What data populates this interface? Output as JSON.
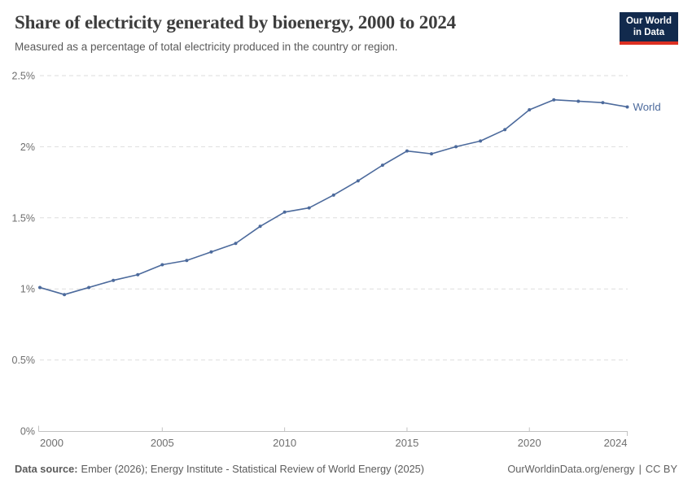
{
  "header": {
    "title": "Share of electricity generated by bioenergy, 2000 to 2024",
    "subtitle": "Measured as a percentage of total electricity produced in the country or region.",
    "logo": {
      "line1": "Our World",
      "line2": "in Data"
    }
  },
  "chart_data": {
    "type": "line",
    "title": "Share of electricity generated by bioenergy, 2000 to 2024",
    "xlabel": "",
    "ylabel": "",
    "unit": "%",
    "xlim": [
      2000,
      2024
    ],
    "ylim": [
      0,
      2.5
    ],
    "grid": "horizontal-dashed",
    "legend_position": "end-of-line-label",
    "x": [
      2000,
      2001,
      2002,
      2003,
      2004,
      2005,
      2006,
      2007,
      2008,
      2009,
      2010,
      2011,
      2012,
      2013,
      2014,
      2015,
      2016,
      2017,
      2018,
      2019,
      2020,
      2021,
      2022,
      2023,
      2024
    ],
    "series": [
      {
        "name": "World",
        "color": "#4c6a9c",
        "values": [
          1.01,
          0.96,
          1.01,
          1.06,
          1.1,
          1.17,
          1.2,
          1.26,
          1.32,
          1.44,
          1.54,
          1.57,
          1.66,
          1.76,
          1.87,
          1.97,
          1.95,
          2.0,
          2.04,
          2.12,
          2.26,
          2.33,
          2.32,
          2.31,
          2.28
        ]
      }
    ],
    "y_ticks": [
      {
        "value": 0,
        "label": "0%"
      },
      {
        "value": 0.5,
        "label": "0.5%"
      },
      {
        "value": 1,
        "label": "1%"
      },
      {
        "value": 1.5,
        "label": "1.5%"
      },
      {
        "value": 2,
        "label": "2%"
      },
      {
        "value": 2.5,
        "label": "2.5%"
      }
    ],
    "x_ticks": [
      {
        "value": 2000,
        "label": "2000"
      },
      {
        "value": 2005,
        "label": "2005"
      },
      {
        "value": 2010,
        "label": "2010"
      },
      {
        "value": 2015,
        "label": "2015"
      },
      {
        "value": 2020,
        "label": "2020"
      },
      {
        "value": 2024,
        "label": "2024"
      }
    ]
  },
  "footer": {
    "source_label": "Data source:",
    "source_text": "Ember (2026); Energy Institute - Statistical Review of World Energy (2025)",
    "link": "OurWorldinData.org/energy",
    "separator": "|",
    "license": "CC BY"
  },
  "colors": {
    "line": "#4c6a9c",
    "grid": "#dedede",
    "axis": "#c2c2c2",
    "tick_text": "#6e6e6e",
    "title_text": "#3d3d3d",
    "subtitle_text": "#5a5a5a",
    "footer_text": "#5b5b5b",
    "logo_bg": "#122a4d",
    "logo_accent": "#dc3022",
    "background": "#ffffff"
  }
}
